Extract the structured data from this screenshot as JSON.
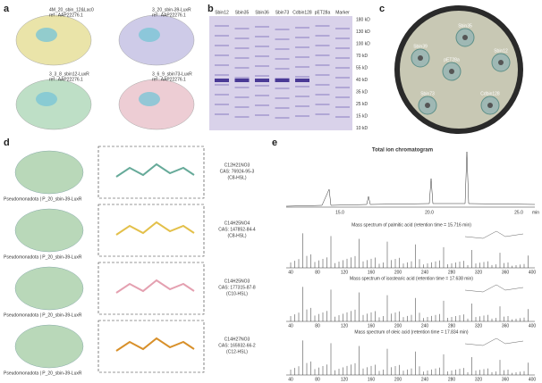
{
  "panels": {
    "a": {
      "label": "a",
      "structures": [
        {
          "name": "4M_20_sbin_12&Lac0",
          "ref": "ref : AAP22276.1"
        },
        {
          "name": "3_20_sbin-39-LuxR",
          "ref": "ref : AAP22276.1"
        },
        {
          "name": "3_3_8_sbin12-LuxR",
          "ref": "ref : AAP22276.1"
        },
        {
          "name": "3_6_9_sbin73-LuxR",
          "ref": "ref : AAP22276.1"
        }
      ]
    },
    "b": {
      "label": "b",
      "lanes": [
        "Sbin12",
        "Sbin35",
        "Sbin36",
        "Sbin73",
        "Cdbin128",
        "pET28a",
        "Marker"
      ],
      "marker": [
        "180 kD",
        "130 kD",
        "100 kD",
        "70 kD",
        "55 kD",
        "40 kD",
        "35 kD",
        "25 kD",
        "15 kD",
        "10 kD"
      ]
    },
    "c": {
      "label": "c",
      "spots": [
        "Sbin35",
        "Sbin39",
        "pET28a",
        "Sbin12",
        "Sbin73",
        "Cdbin128"
      ]
    },
    "d": {
      "label": "d",
      "rows": [
        {
          "protein": "Pseudomonadota | P_20_sbin-39-LuxR",
          "formula": "C12H21NO3",
          "cas": "CAS: 76924-95-3",
          "abbr": "(C8-HSL)"
        },
        {
          "protein": "Pseudomonadota | P_20_sbin-39-LuxR",
          "formula": "C14H25NO4",
          "cas": "CAS: 147852-84-4",
          "abbr": "(C8-HSL)"
        },
        {
          "protein": "Pseudomonadota | P_20_sbin-39-LuxR",
          "formula": "C14H25NO3",
          "cas": "CAS: 177315-87-8",
          "abbr": "(C10-HSL)"
        },
        {
          "protein": "Pseudomonadota | P_20_sbin-39-LuxR",
          "formula": "C14H27NO3",
          "cas": "CAS: 165932-66-2",
          "abbr": "(C12-HSL)"
        }
      ]
    },
    "e": {
      "label": "e",
      "tic_title": "Total ion chromatogram",
      "tic_ticks": [
        "15.0",
        "20.0",
        "25.0"
      ],
      "tic_unit": "min",
      "spectra": [
        {
          "title": "Mass spectrum of palmitic acid (retention time = 15.716 min)"
        },
        {
          "title": "Mass spectrum of isostearic acid (retention time = 17.638 min)"
        },
        {
          "title": "Mass spectrum of oleic acid (retention time = 17.834 min)"
        }
      ],
      "mz_ticks": [
        40,
        80,
        120,
        160,
        200,
        240,
        280,
        320,
        360,
        400
      ]
    }
  }
}
